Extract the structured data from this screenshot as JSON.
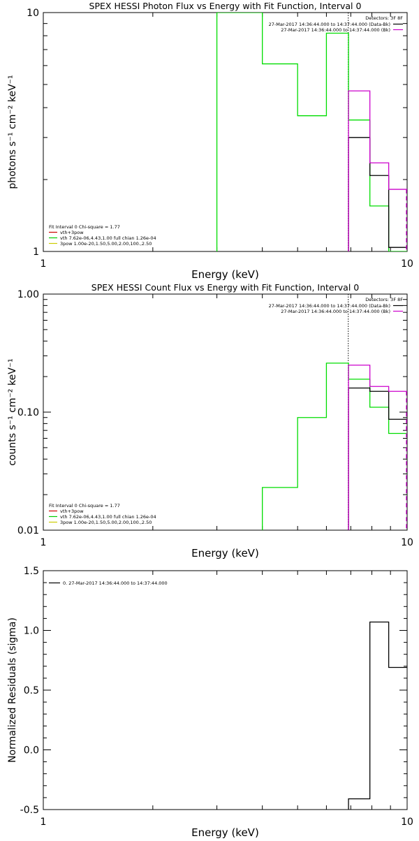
{
  "chart_data": [
    {
      "type": "line",
      "step": true,
      "title": "SPEX HESSI Photon Flux vs Energy with Fit Function, Interval 0",
      "xlabel": "Energy (keV)",
      "ylabel": "photons s⁻¹ cm⁻² keV⁻¹",
      "xscale": "log",
      "yscale": "log",
      "xlim": [
        1,
        10
      ],
      "ylim": [
        1,
        10
      ],
      "x_ticks": [
        {
          "v": 1,
          "t": "1"
        },
        {
          "v": 10,
          "t": "10"
        }
      ],
      "y_ticks": [
        {
          "v": 1,
          "t": "1"
        },
        {
          "v": 10,
          "t": "10"
        }
      ],
      "vline": 6.89,
      "legend_topright": {
        "title": "Detectors: 3F 8F",
        "entries": [
          {
            "text": "27-Mar-2017 14:36:44.000 to 14:37:44.000 (Data-Bk)",
            "color": "#000000"
          },
          {
            "text": "27-Mar-2017 14:36:44.000 to 14:37:44.000 (Bk)",
            "color": "#cc00cc"
          }
        ]
      },
      "legend_bottomleft": {
        "title": "Fit Interval 0   Chi-square = 1.77",
        "entries": [
          {
            "text": "vth+3pow",
            "color": "#cc0000"
          },
          {
            "text": "vth 7.62e-06,4.43,1.00  full chian 1.26e-04",
            "color": "#00cc00"
          },
          {
            "text": "3pow 1.00e-20,1.50,5.00,2.00,100.,2.50",
            "color": "#cccc00"
          }
        ]
      },
      "series": [
        {
          "color": "#00dd00",
          "edges": [
            3.0,
            4.0,
            5.0,
            6.0,
            6.9,
            7.9,
            8.9,
            10.0
          ],
          "values": [
            10.0,
            6.1,
            3.7,
            8.2,
            3.55,
            1.55,
            1.0
          ]
        },
        {
          "color": "#000000",
          "edges": [
            6.9,
            7.9,
            8.9,
            10.0
          ],
          "values": [
            3.0,
            2.08,
            1.04
          ]
        },
        {
          "color": "#cc00cc",
          "edges": [
            6.9,
            7.9,
            8.9,
            10.0
          ],
          "values": [
            4.7,
            2.35,
            1.82
          ]
        }
      ]
    },
    {
      "type": "line",
      "step": true,
      "title": "SPEX HESSI Count Flux vs Energy with Fit Function, Interval 0",
      "xlabel": "Energy (keV)",
      "ylabel": "counts s⁻¹ cm⁻² keV⁻¹",
      "xscale": "log",
      "yscale": "log",
      "xlim": [
        1,
        10
      ],
      "ylim": [
        0.01,
        1.0
      ],
      "x_ticks": [
        {
          "v": 1,
          "t": "1"
        },
        {
          "v": 10,
          "t": "10"
        }
      ],
      "y_ticks": [
        {
          "v": 0.01,
          "t": "0.01"
        },
        {
          "v": 0.1,
          "t": "0.10"
        },
        {
          "v": 1.0,
          "t": "1.00"
        }
      ],
      "vline": 6.89,
      "legend_topright": {
        "title": "Detectors: 3F 8F",
        "entries": [
          {
            "text": "27-Mar-2017 14:36:44.000 to 14:37:44.000 (Data-Bk)",
            "color": "#000000"
          },
          {
            "text": "27-Mar-2017 14:36:44.000 to 14:37:44.000 (Bk)",
            "color": "#cc00cc"
          }
        ]
      },
      "legend_bottomleft": {
        "title": "Fit Interval 0   Chi-square = 1.77",
        "entries": [
          {
            "text": "vth+3pow",
            "color": "#cc0000"
          },
          {
            "text": "vth 7.62e-06,4.43,1.00  full chian 1.26e-04",
            "color": "#00cc00"
          },
          {
            "text": "3pow 1.00e-20,1.50,5.00,2.00,100.,2.50",
            "color": "#cccc00"
          }
        ]
      },
      "series": [
        {
          "color": "#00dd00",
          "edges": [
            4.0,
            5.0,
            6.0,
            6.9,
            7.9,
            8.9,
            10.0
          ],
          "values": [
            0.023,
            0.09,
            0.26,
            0.19,
            0.11,
            0.066
          ]
        },
        {
          "color": "#000000",
          "edges": [
            6.9,
            7.9,
            8.9,
            10.0
          ],
          "values": [
            0.16,
            0.15,
            0.087
          ]
        },
        {
          "color": "#cc00cc",
          "edges": [
            6.9,
            7.9,
            8.9,
            10.0
          ],
          "values": [
            0.25,
            0.165,
            0.15
          ]
        }
      ]
    },
    {
      "type": "line",
      "step": true,
      "title": "",
      "xlabel": "Energy (keV)",
      "ylabel": "Normalized Residuals (sigma)",
      "xscale": "log",
      "yscale": "linear",
      "xlim": [
        1,
        10
      ],
      "ylim": [
        -0.5,
        1.5
      ],
      "x_ticks": [
        {
          "v": 1,
          "t": "1"
        },
        {
          "v": 10,
          "t": "10"
        }
      ],
      "y_ticks": [
        {
          "v": -0.5,
          "t": "-0.5"
        },
        {
          "v": 0.0,
          "t": "0.0"
        },
        {
          "v": 0.5,
          "t": "0.5"
        },
        {
          "v": 1.0,
          "t": "1.0"
        },
        {
          "v": 1.5,
          "t": "1.5"
        }
      ],
      "legend_topleft": {
        "entries": [
          {
            "text": "0. 27-Mar-2017 14:36:44.000 to 14:37:44.000",
            "color": "#000000"
          }
        ]
      },
      "series": [
        {
          "color": "#000000",
          "edges": [
            6.9,
            7.9,
            8.9,
            10.0
          ],
          "values": [
            -0.41,
            1.07,
            0.69
          ]
        }
      ]
    }
  ]
}
